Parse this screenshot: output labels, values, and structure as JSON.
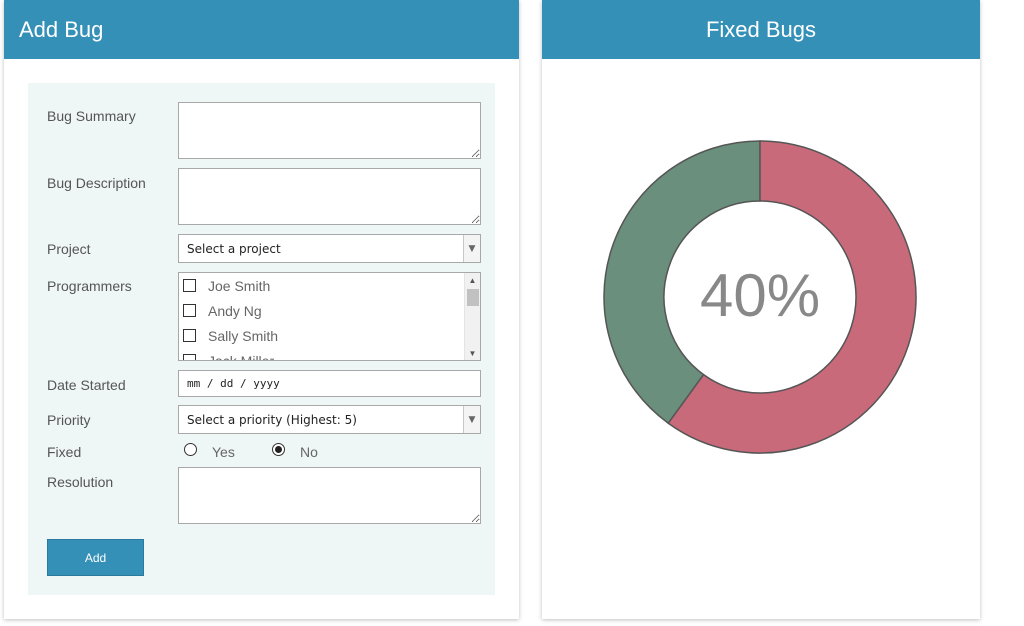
{
  "add_panel": {
    "title": "Add Bug",
    "labels": {
      "summary": "Bug Summary",
      "description": "Bug Description",
      "project": "Project",
      "programmers": "Programmers",
      "date_started": "Date Started",
      "priority": "Priority",
      "fixed": "Fixed",
      "resolution": "Resolution"
    },
    "project_select": {
      "value": "Select a project"
    },
    "programmers": [
      "Joe Smith",
      "Andy Ng",
      "Sally Smith",
      "Jack Miller"
    ],
    "date_started": {
      "placeholder": "mm / dd / yyyy"
    },
    "priority_select": {
      "value": "Select a priority (Highest: 5)"
    },
    "fixed_options": {
      "yes": "Yes",
      "no": "No",
      "selected": "No"
    },
    "add_button": "Add"
  },
  "fixed_panel": {
    "title": "Fixed Bugs",
    "percent_label": "40%",
    "colors": {
      "fixed": "#6a8f7c",
      "unfixed": "#c96a7b",
      "header": "#3590b8"
    }
  },
  "chart_data": {
    "type": "pie",
    "variant": "donut",
    "center_label": "40%",
    "slices": [
      {
        "value": 40,
        "color": "#6a8f7c"
      },
      {
        "value": 60,
        "color": "#c96a7b"
      }
    ]
  }
}
